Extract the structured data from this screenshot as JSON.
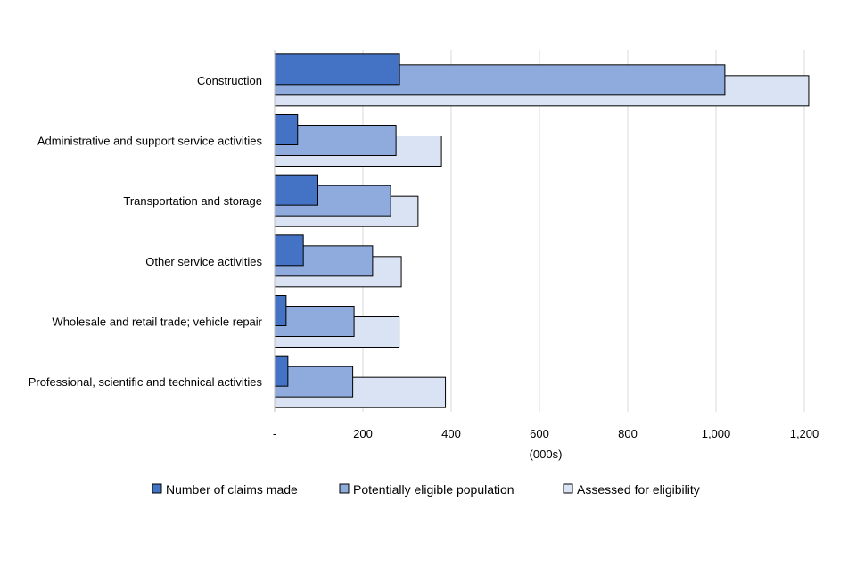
{
  "chart_data": {
    "type": "bar",
    "orientation": "horizontal",
    "title": "",
    "xlabel": "(000s)",
    "ylabel": "",
    "xlim": [
      0,
      1200
    ],
    "grid": true,
    "legend_position": "bottom",
    "categories": [
      "Construction",
      "Administrative and support service activities",
      "Transportation and storage",
      "Other service activities",
      "Wholesale and retail trade; vehicle repair",
      "Professional, scientific and technical activities"
    ],
    "ticks": [
      0,
      200,
      400,
      600,
      800,
      1000,
      1200
    ],
    "tick_labels": [
      "-",
      "200",
      "400",
      "600",
      "800",
      "1,000",
      "1,200"
    ],
    "series": [
      {
        "name": "Number of claims made",
        "color": "#4472c4",
        "values": [
          283,
          52,
          98,
          65,
          26,
          30
        ]
      },
      {
        "name": "Potentially eligible population",
        "color": "#8faadc",
        "values": [
          1020,
          275,
          263,
          222,
          180,
          177
        ]
      },
      {
        "name": "Assessed for eligibility",
        "color": "#dae3f3",
        "values": [
          1210,
          378,
          325,
          287,
          282,
          387
        ]
      }
    ]
  }
}
